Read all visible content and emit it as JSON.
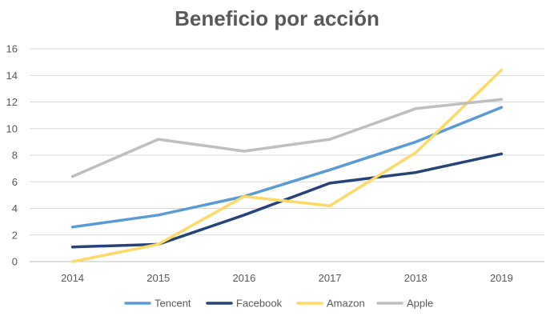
{
  "chart_data": {
    "type": "line",
    "title": "Beneficio por acción",
    "x": [
      "2014",
      "2015",
      "2016",
      "2017",
      "2018",
      "2019"
    ],
    "ylim": [
      0,
      16
    ],
    "yticks": [
      0,
      2,
      4,
      6,
      8,
      10,
      12,
      14,
      16
    ],
    "grid": true,
    "legend_position": "bottom",
    "series": [
      {
        "name": "Tencent",
        "color": "#5b9bd5",
        "values": [
          2.6,
          3.5,
          4.9,
          6.9,
          9.0,
          11.6
        ]
      },
      {
        "name": "Facebook",
        "color": "#264478",
        "values": [
          1.1,
          1.3,
          3.5,
          5.9,
          6.7,
          8.1
        ]
      },
      {
        "name": "Amazon",
        "color": "#ffd966",
        "values": [
          0.0,
          1.3,
          4.9,
          4.2,
          8.2,
          14.4
        ]
      },
      {
        "name": "Apple",
        "color": "#bfbfbf",
        "values": [
          6.4,
          9.2,
          8.3,
          9.2,
          11.5,
          12.2
        ]
      }
    ]
  }
}
